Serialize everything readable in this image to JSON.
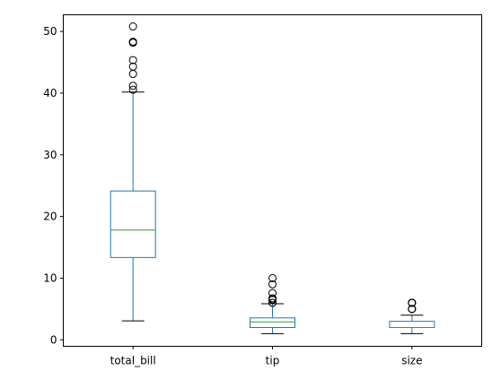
{
  "chart_data": {
    "type": "box",
    "title": "",
    "xlabel": "",
    "ylabel": "",
    "categories": [
      "total_bill",
      "tip",
      "size"
    ],
    "ylim": [
      -1.05,
      52.7
    ],
    "yticks": [
      0,
      10,
      20,
      30,
      40,
      50
    ],
    "grid": false,
    "colors": {
      "box": "#1f77b4",
      "median": "#2ca02c",
      "whisker": "#1f77b4",
      "cap": "#000000",
      "flier": "#000000"
    },
    "boxes": [
      {
        "label": "total_bill",
        "whislo": 3.07,
        "q1": 13.35,
        "med": 17.8,
        "q3": 24.13,
        "whishi": 40.17,
        "fliers": [
          48.27,
          44.3,
          41.19,
          48.17,
          50.81,
          45.35,
          40.55,
          43.11,
          48.33
        ]
      },
      {
        "label": "tip",
        "whislo": 1.0,
        "q1": 2.0,
        "med": 2.9,
        "q3": 3.56,
        "whishi": 5.85,
        "fliers": [
          6.0,
          6.5,
          6.0,
          6.7,
          6.73,
          7.58,
          9.0,
          10.0,
          6.5
        ]
      },
      {
        "label": "size",
        "whislo": 1.0,
        "q1": 2.0,
        "med": 2.0,
        "q3": 3.0,
        "whishi": 4.0,
        "fliers": [
          5,
          5,
          6,
          6,
          6,
          5,
          6,
          6,
          5
        ]
      }
    ]
  }
}
